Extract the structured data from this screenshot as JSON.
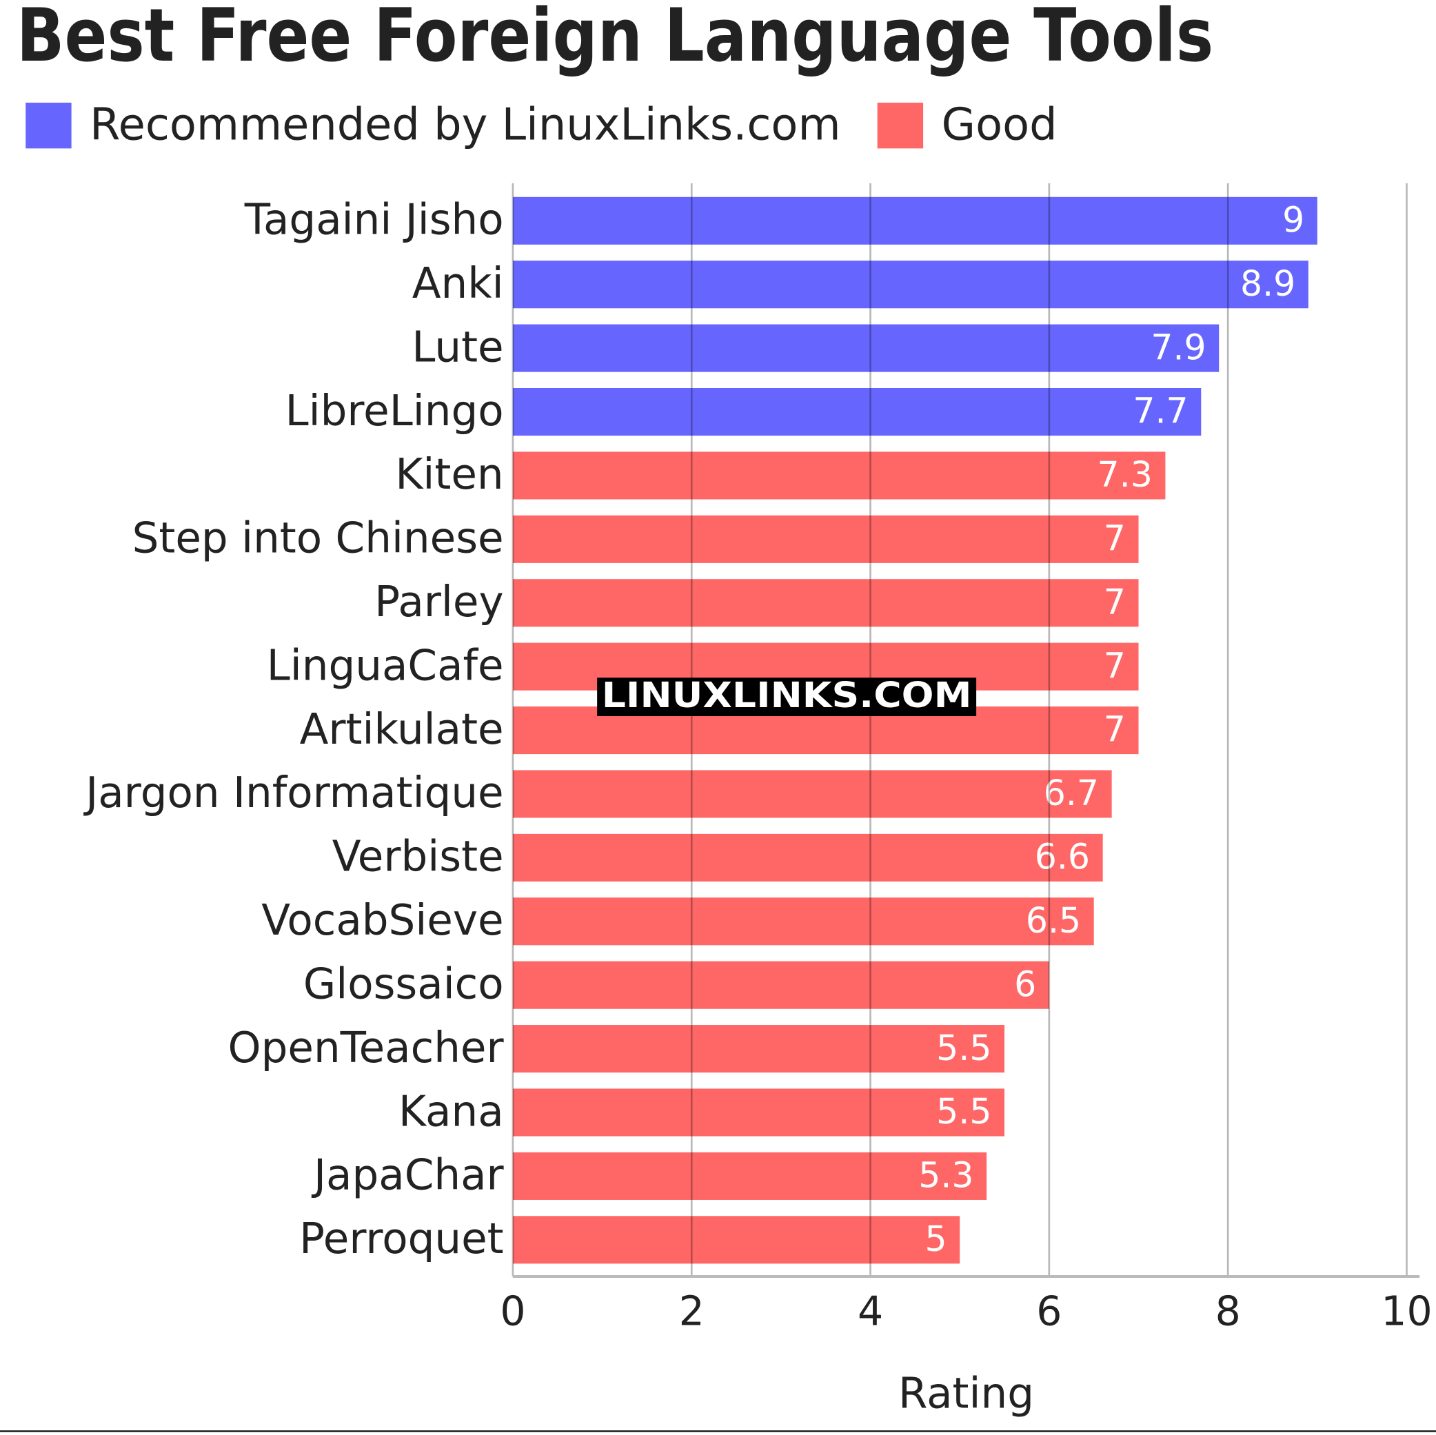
{
  "chart_data": {
    "type": "bar",
    "orientation": "horizontal",
    "title": "Best Free Foreign Language Tools",
    "x_label": "Rating",
    "watermark": "LINUXLINKS.COM",
    "categories": [
      "Tagaini Jisho",
      "Anki",
      "Lute",
      "LibreLingo",
      "Kiten",
      "Step into Chinese",
      "Parley",
      "LinguaCafe",
      "Artikulate",
      "Jargon Informatique",
      "Verbiste",
      "VocabSieve",
      "Glossaico",
      "OpenTeacher",
      "Kana",
      "JapaChar",
      "Perroquet"
    ],
    "series": [
      {
        "name": "Recommended by LinuxLinks.com",
        "color": "#6666ff",
        "values": [
          9,
          8.9,
          7.9,
          7.7,
          null,
          null,
          null,
          null,
          null,
          null,
          null,
          null,
          null,
          null,
          null,
          null,
          null
        ]
      },
      {
        "name": "Good",
        "color": "#ff6666",
        "values": [
          null,
          null,
          null,
          null,
          7.3,
          7,
          7,
          7,
          7,
          6.7,
          6.6,
          6.5,
          6,
          5.5,
          5.5,
          5.3,
          5
        ]
      }
    ],
    "xlim": [
      0,
      10
    ],
    "xticks": [
      0,
      2,
      4,
      6,
      8,
      10
    ],
    "grid": true,
    "legend": "top"
  }
}
